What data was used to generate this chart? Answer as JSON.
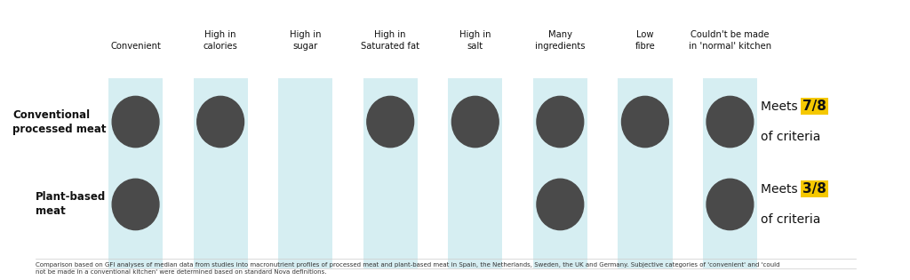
{
  "columns": [
    "Convenient",
    "High in\ncalories",
    "High in\nsugar",
    "High in\nSaturated fat",
    "High in\nsalt",
    "Many\ningredients",
    "Low\nfibre",
    "Couldn't be made\nin 'normal' kitchen"
  ],
  "rows": [
    {
      "label": "Conventional\nprocessed meat",
      "meets": [
        1,
        1,
        0,
        1,
        1,
        1,
        1,
        1
      ],
      "score": "7/8"
    },
    {
      "label": "Plant-based\nmeat",
      "meets": [
        1,
        0,
        0,
        0,
        0,
        1,
        0,
        1
      ],
      "score": "3/8"
    }
  ],
  "col_color": "#d6eef2",
  "dot_color": "#4a4a4a",
  "yellow_color": "#f5c800",
  "background_color": "#ffffff",
  "footnote": "Comparison based on GFI analyses of median data from studies into macronutrient profiles of processed meat and plant-based meat in Spain, the Netherlands, Sweden, the UK and Germany. Subjective categories of 'convenient' and 'could\nnot be made in a conventional kitchen' were determined based on standard Nova definitions."
}
